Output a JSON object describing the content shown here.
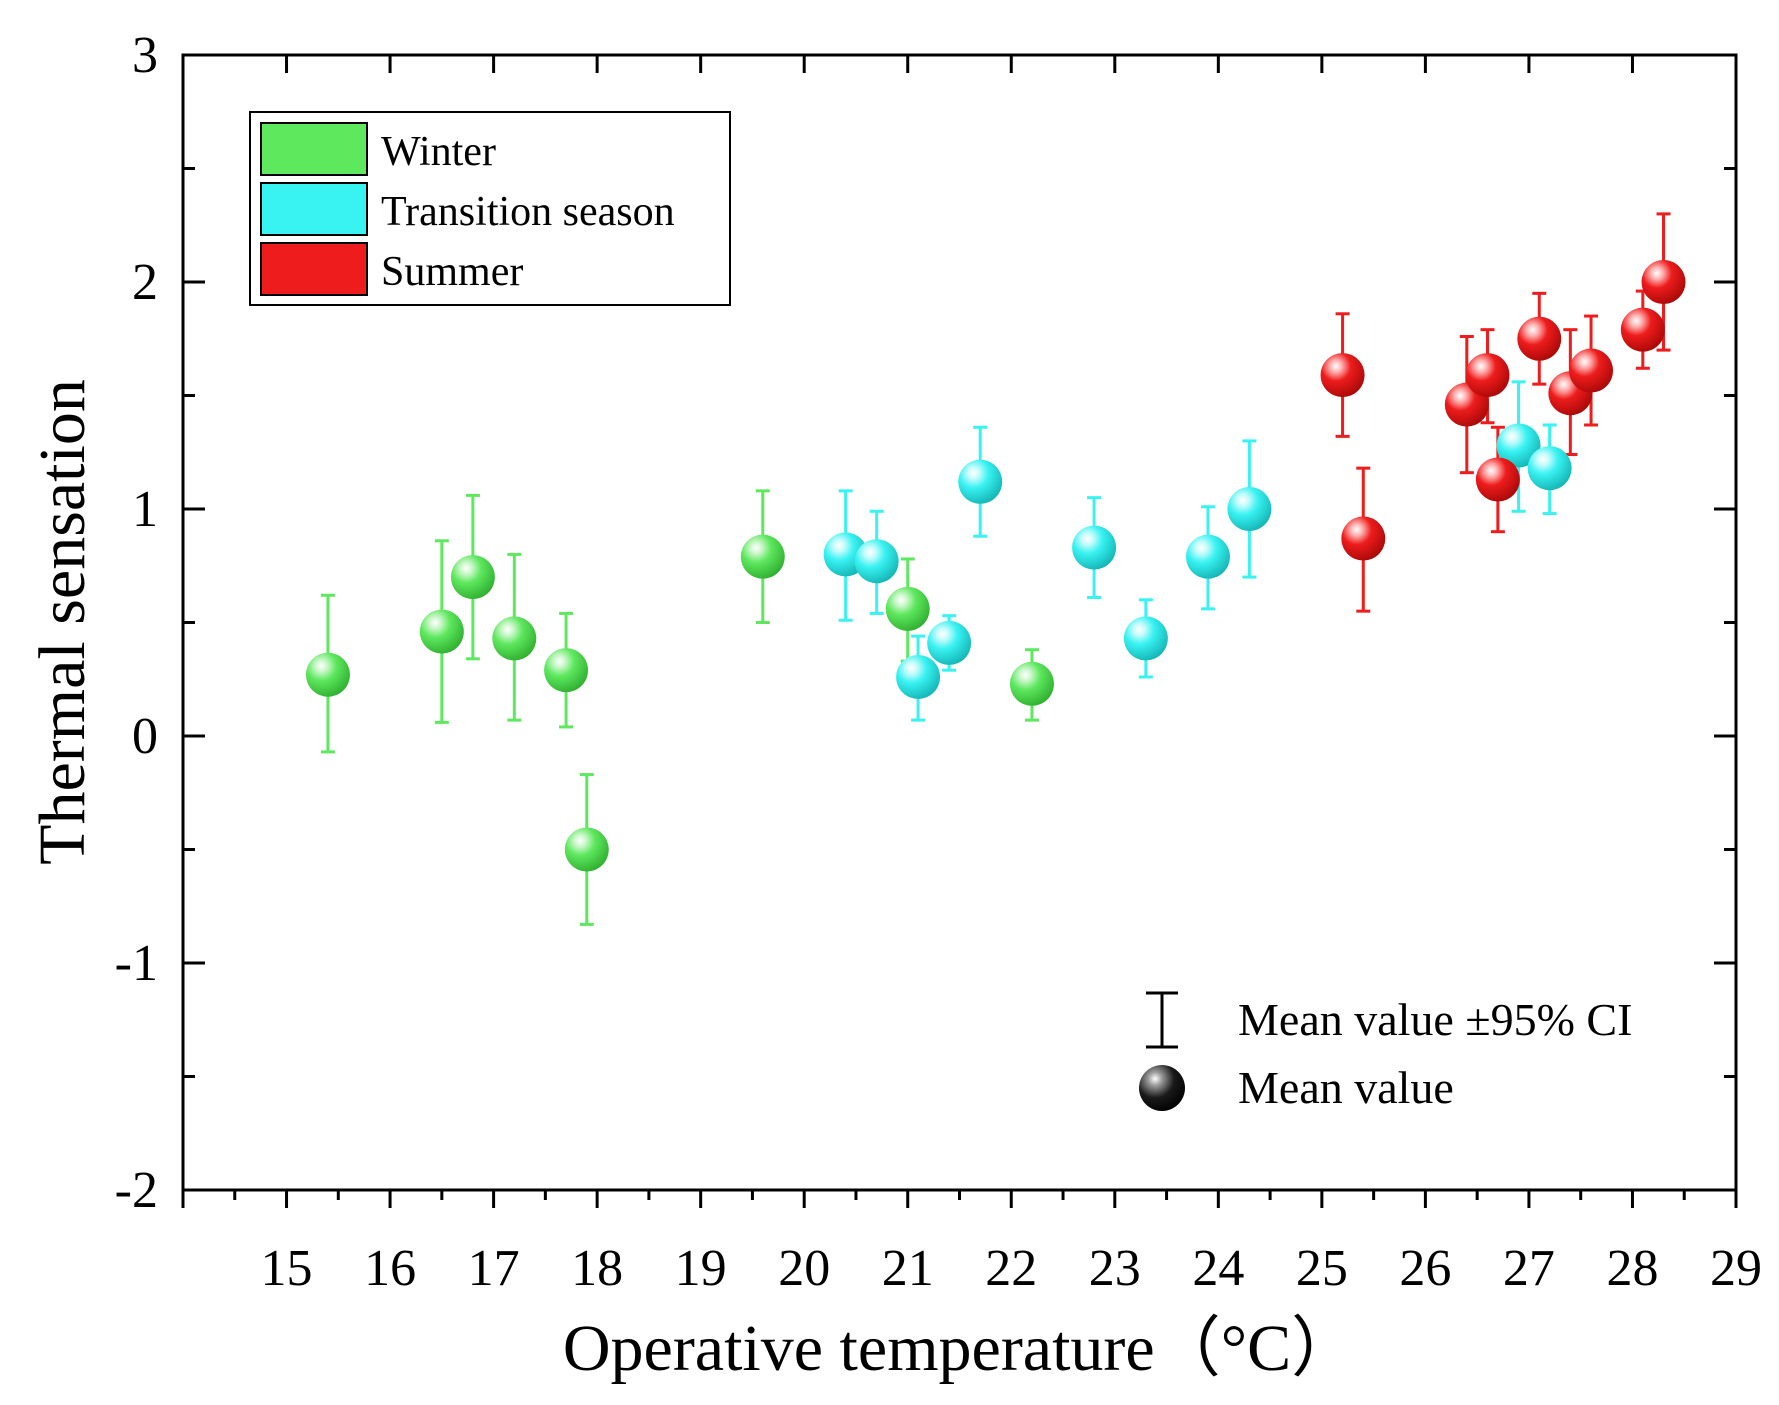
{
  "colors": {
    "winter": "#5ee85e",
    "transition": "#39f2f2",
    "summer": "#ee1c1c",
    "axis": "#000000"
  },
  "chart_data": {
    "type": "scatter",
    "xlabel": "Operative temperature（°C）",
    "ylabel": "Thermal sensation",
    "xlim": [
      14,
      29
    ],
    "ylim": [
      -2,
      3
    ],
    "xticks": [
      "15",
      "16",
      "17",
      "18",
      "19",
      "20",
      "21",
      "22",
      "23",
      "24",
      "25",
      "26",
      "27",
      "28",
      "29"
    ],
    "yticks": [
      "-2",
      "-1",
      "0",
      "1",
      "2",
      "3"
    ],
    "legend": {
      "position": "top-left",
      "entries": [
        "Winter",
        "Transition season",
        "Summer"
      ]
    },
    "annotation": {
      "position": "bottom-right",
      "ci_label": "Mean value ±95% CI",
      "mean_label": "Mean value"
    },
    "series": [
      {
        "name": "Winter",
        "points": [
          {
            "x": 15.4,
            "y": 0.27,
            "lo": -0.07,
            "hi": 0.62
          },
          {
            "x": 16.5,
            "y": 0.46,
            "lo": 0.06,
            "hi": 0.86
          },
          {
            "x": 16.8,
            "y": 0.7,
            "lo": 0.34,
            "hi": 1.06
          },
          {
            "x": 17.2,
            "y": 0.43,
            "lo": 0.07,
            "hi": 0.8
          },
          {
            "x": 17.7,
            "y": 0.29,
            "lo": 0.04,
            "hi": 0.54
          },
          {
            "x": 17.9,
            "y": -0.5,
            "lo": -0.83,
            "hi": -0.17
          },
          {
            "x": 19.6,
            "y": 0.79,
            "lo": 0.5,
            "hi": 1.08
          },
          {
            "x": 21.0,
            "y": 0.56,
            "lo": 0.33,
            "hi": 0.78
          },
          {
            "x": 22.2,
            "y": 0.23,
            "lo": 0.07,
            "hi": 0.38
          }
        ]
      },
      {
        "name": "Transition season",
        "points": [
          {
            "x": 20.4,
            "y": 0.8,
            "lo": 0.51,
            "hi": 1.08
          },
          {
            "x": 20.7,
            "y": 0.77,
            "lo": 0.54,
            "hi": 0.99
          },
          {
            "x": 21.1,
            "y": 0.26,
            "lo": 0.07,
            "hi": 0.44
          },
          {
            "x": 21.4,
            "y": 0.41,
            "lo": 0.29,
            "hi": 0.53
          },
          {
            "x": 21.7,
            "y": 1.12,
            "lo": 0.88,
            "hi": 1.36
          },
          {
            "x": 22.8,
            "y": 0.83,
            "lo": 0.61,
            "hi": 1.05
          },
          {
            "x": 23.3,
            "y": 0.43,
            "lo": 0.26,
            "hi": 0.6
          },
          {
            "x": 23.9,
            "y": 0.79,
            "lo": 0.56,
            "hi": 1.01
          },
          {
            "x": 24.3,
            "y": 1.0,
            "lo": 0.7,
            "hi": 1.3
          },
          {
            "x": 26.9,
            "y": 1.28,
            "lo": 0.99,
            "hi": 1.56
          },
          {
            "x": 27.2,
            "y": 1.18,
            "lo": 0.98,
            "hi": 1.37
          }
        ]
      },
      {
        "name": "Summer",
        "points": [
          {
            "x": 25.2,
            "y": 1.59,
            "lo": 1.32,
            "hi": 1.86
          },
          {
            "x": 25.4,
            "y": 0.87,
            "lo": 0.55,
            "hi": 1.18
          },
          {
            "x": 26.4,
            "y": 1.46,
            "lo": 1.16,
            "hi": 1.76
          },
          {
            "x": 26.6,
            "y": 1.59,
            "lo": 1.38,
            "hi": 1.79
          },
          {
            "x": 26.7,
            "y": 1.13,
            "lo": 0.9,
            "hi": 1.36
          },
          {
            "x": 27.1,
            "y": 1.75,
            "lo": 1.55,
            "hi": 1.95
          },
          {
            "x": 27.4,
            "y": 1.51,
            "lo": 1.24,
            "hi": 1.79
          },
          {
            "x": 27.6,
            "y": 1.61,
            "lo": 1.37,
            "hi": 1.85
          },
          {
            "x": 28.1,
            "y": 1.79,
            "lo": 1.62,
            "hi": 1.96
          },
          {
            "x": 28.3,
            "y": 2.0,
            "lo": 1.7,
            "hi": 2.3
          }
        ]
      }
    ]
  }
}
